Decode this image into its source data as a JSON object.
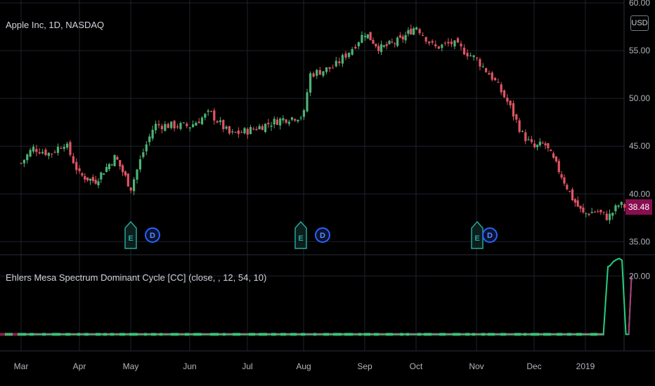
{
  "header": {
    "symbol_title": "Apple Inc, 1D, NASDAQ",
    "currency": "USD",
    "last_price": "38.48"
  },
  "indicator": {
    "title": "Ehlers Mesa Spectrum Dominant Cycle [CC] (close, , 12, 54, 10)"
  },
  "colors": {
    "background": "#000000",
    "up": "#4cb374",
    "down": "#e05463",
    "grid": "#1e222d",
    "badge": "#880e4f",
    "marker_earnings": "#26a69a",
    "marker_dividend": "#2962ff",
    "indicator_line": "#26d07c"
  },
  "markers": [
    {
      "type": "earnings",
      "label": "E",
      "date": "May"
    },
    {
      "type": "dividend",
      "label": "D",
      "date": "May"
    },
    {
      "type": "earnings",
      "label": "E",
      "date": "Aug"
    },
    {
      "type": "dividend",
      "label": "D",
      "date": "Aug"
    },
    {
      "type": "earnings",
      "label": "E",
      "date": "Nov"
    },
    {
      "type": "dividend",
      "label": "D",
      "date": "Nov"
    }
  ],
  "chart_data": [
    {
      "type": "candlestick",
      "title": "Apple Inc, 1D, NASDAQ",
      "x_ticks": [
        "Mar",
        "Apr",
        "May",
        "Jun",
        "Jul",
        "Aug",
        "Sep",
        "Oct",
        "Nov",
        "Dec",
        "2019"
      ],
      "y_ticks": [
        35.0,
        40.0,
        45.0,
        50.0,
        55.0,
        60.0
      ],
      "y_tick_labels": [
        "35.00",
        "40.00",
        "45.00",
        "50.00",
        "55.00",
        "60.00"
      ],
      "ylim": [
        33.7,
        60.3
      ],
      "grid": true,
      "close_path": [
        {
          "t": 0.0,
          "c": 43.2
        },
        {
          "t": 0.2,
          "c": 44.8
        },
        {
          "t": 0.5,
          "c": 44.2
        },
        {
          "t": 0.75,
          "c": 45.4
        },
        {
          "t": 1.0,
          "c": 42.0
        },
        {
          "t": 1.3,
          "c": 41.3
        },
        {
          "t": 1.7,
          "c": 43.9
        },
        {
          "t": 2.0,
          "c": 40.6
        },
        {
          "t": 2.2,
          "c": 44.2
        },
        {
          "t": 2.4,
          "c": 47.2
        },
        {
          "t": 3.0,
          "c": 47.1
        },
        {
          "t": 3.35,
          "c": 48.5
        },
        {
          "t": 3.7,
          "c": 46.2
        },
        {
          "t": 4.0,
          "c": 46.6
        },
        {
          "t": 4.6,
          "c": 47.8
        },
        {
          "t": 5.0,
          "c": 48.2
        },
        {
          "t": 5.1,
          "c": 52.5
        },
        {
          "t": 5.5,
          "c": 53.3
        },
        {
          "t": 5.8,
          "c": 55.3
        },
        {
          "t": 6.0,
          "c": 56.9
        },
        {
          "t": 6.3,
          "c": 55.2
        },
        {
          "t": 6.7,
          "c": 56.1
        },
        {
          "t": 7.0,
          "c": 57.6
        },
        {
          "t": 7.3,
          "c": 55.3
        },
        {
          "t": 7.6,
          "c": 55.8
        },
        {
          "t": 8.0,
          "c": 54.1
        },
        {
          "t": 8.3,
          "c": 52.0
        },
        {
          "t": 8.55,
          "c": 49.5
        },
        {
          "t": 8.8,
          "c": 46.2
        },
        {
          "t": 9.0,
          "c": 44.8
        },
        {
          "t": 9.2,
          "c": 45.3
        },
        {
          "t": 9.5,
          "c": 42.3
        },
        {
          "t": 9.75,
          "c": 39.5
        },
        {
          "t": 9.95,
          "c": 37.9
        },
        {
          "t": 10.2,
          "c": 38.2
        },
        {
          "t": 10.4,
          "c": 37.5
        },
        {
          "t": 10.6,
          "c": 38.9
        },
        {
          "t": 10.8,
          "c": 38.48
        }
      ]
    },
    {
      "type": "line",
      "title": "Ehlers Mesa Spectrum Dominant Cycle [CC] (close, , 12, 54, 10)",
      "y_ticks": [
        20.0
      ],
      "y_tick_labels": [
        "20.00"
      ],
      "ylim": [
        8.0,
        23.4
      ],
      "baseline_value": 10,
      "series": [
        {
          "x": [
            0.0,
            10.32,
            10.4,
            10.43,
            10.5,
            10.55,
            10.6,
            10.65,
            10.72,
            10.77,
            10.82
          ],
          "y": [
            10.0,
            10.0,
            21.6,
            21.7,
            22.5,
            22.8,
            23.0,
            22.7,
            10.0,
            10.0,
            20.0
          ]
        }
      ]
    }
  ]
}
